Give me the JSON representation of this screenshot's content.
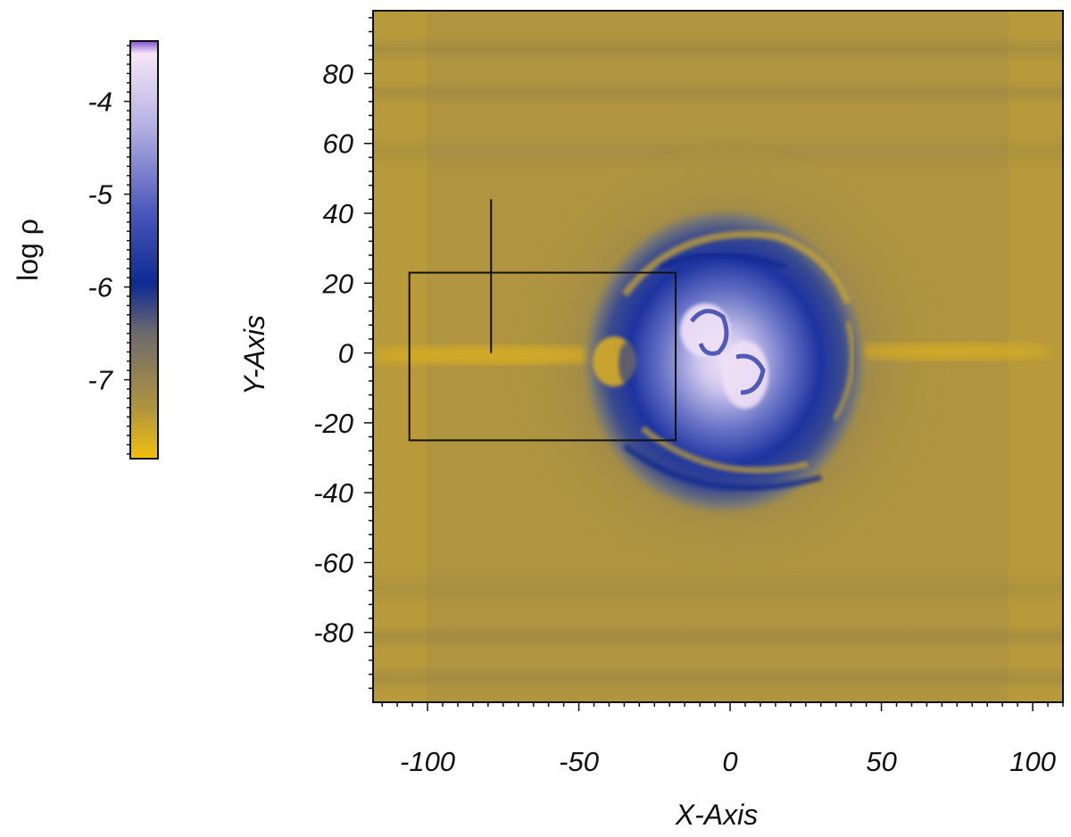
{
  "chart_data": {
    "type": "heatmap",
    "title": "",
    "xlabel": "X-Axis",
    "ylabel": "Y-Axis",
    "xlim": [
      -118,
      110
    ],
    "ylim": [
      -100,
      98
    ],
    "x_ticks": [
      -100,
      -50,
      0,
      50,
      100
    ],
    "y_ticks": [
      80,
      60,
      40,
      20,
      0,
      -20,
      -40,
      -60,
      -80
    ],
    "x_tick_labels": [
      "-100",
      "-50",
      "0",
      "50",
      "100"
    ],
    "y_tick_labels": [
      "80",
      "60",
      "40",
      "20",
      "0",
      "-20",
      "-40",
      "-60",
      "-80"
    ],
    "colorbar": {
      "label": "log ρ",
      "range": [
        -7.85,
        -3.35
      ],
      "ticks": [
        -4,
        -5,
        -6,
        -7
      ],
      "tick_labels": [
        "-4",
        "-5",
        "-6",
        "-7"
      ],
      "colors": [
        "#f2bf0c",
        "#b09440",
        "#6d6a6d",
        "#0e2a93",
        "#4654b8",
        "#b7b2e4",
        "#f6e6f7",
        "#7b4fd0"
      ],
      "color_stops": [
        0,
        0.12,
        0.3,
        0.42,
        0.58,
        0.8,
        0.97,
        1
      ]
    },
    "field_description": {
      "background_log_rho": -7.2,
      "central_blob_center": [
        10,
        0
      ],
      "central_blob_radius": 45,
      "core_log_rho": -4.2,
      "equatorial_streams": [
        [
          -118,
          -40,
          0
        ],
        [
          45,
          110,
          0
        ]
      ]
    },
    "annotations": [
      {
        "kind": "rectangle",
        "x": [
          -106,
          -18
        ],
        "y": [
          -25,
          23
        ]
      },
      {
        "kind": "line",
        "x": [
          -79,
          -79
        ],
        "y": [
          0,
          44
        ]
      }
    ]
  }
}
